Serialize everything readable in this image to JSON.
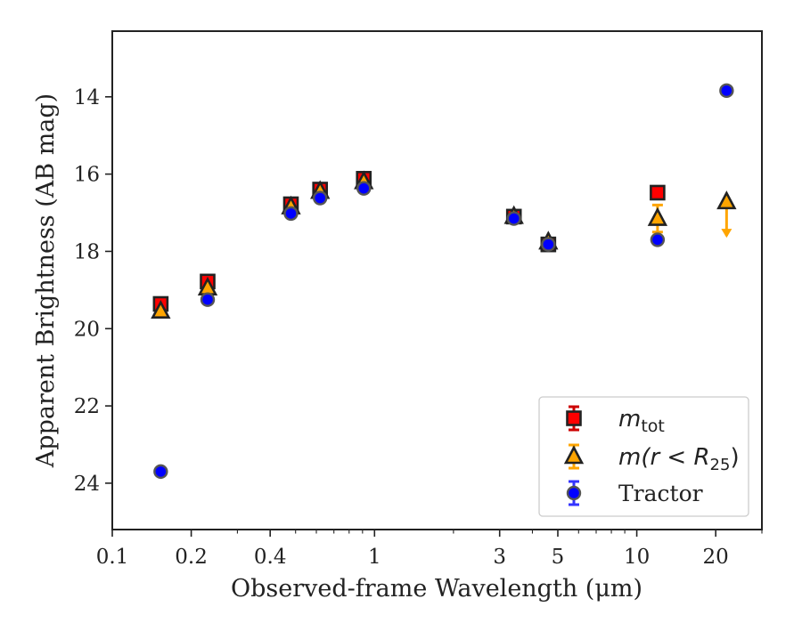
{
  "chart_data": {
    "type": "scatter",
    "xscale": "log",
    "xlim": [
      0.1,
      30
    ],
    "ylim": [
      25.2,
      12.3
    ],
    "y_inverted": true,
    "xlabel": "Observed-frame Wavelength (μm)",
    "ylabel": "Apparent Brightness (AB mag)",
    "x_ticks": [
      0.1,
      0.2,
      0.4,
      1,
      3,
      5,
      10,
      20
    ],
    "x_tick_labels": [
      "0.1",
      "0.2",
      "0.4",
      "1",
      "3",
      "5",
      "10",
      "20"
    ],
    "y_ticks": [
      14,
      16,
      18,
      20,
      22,
      24
    ],
    "y_tick_labels": [
      "14",
      "16",
      "18",
      "20",
      "22",
      "24"
    ],
    "grid": false,
    "legend_position": "lower-right",
    "series": [
      {
        "name": "m_tot",
        "legend_parts": {
          "base": "m",
          "sub": "tot"
        },
        "marker": "square",
        "color": "#ff0000",
        "edge": "#222222",
        "errcolor": "#cc0000",
        "points": [
          {
            "x": 0.153,
            "y": 19.36
          },
          {
            "x": 0.231,
            "y": 18.78
          },
          {
            "x": 0.48,
            "y": 16.78
          },
          {
            "x": 0.62,
            "y": 16.4
          },
          {
            "x": 0.91,
            "y": 16.12
          },
          {
            "x": 3.4,
            "y": 17.1
          },
          {
            "x": 4.6,
            "y": 17.82
          },
          {
            "x": 12.0,
            "y": 16.48
          }
        ]
      },
      {
        "name": "m(r < R_25)",
        "legend_parts": {
          "pre": "m(r < R",
          "sub": "25",
          "post": ")"
        },
        "marker": "triangle",
        "color": "#ffa500",
        "edge": "#222222",
        "errcolor": "#ffa500",
        "points": [
          {
            "x": 0.153,
            "y": 19.55
          },
          {
            "x": 0.231,
            "y": 18.95
          },
          {
            "x": 0.48,
            "y": 16.85
          },
          {
            "x": 0.62,
            "y": 16.45
          },
          {
            "x": 0.91,
            "y": 16.2
          },
          {
            "x": 3.4,
            "y": 17.1
          },
          {
            "x": 4.6,
            "y": 17.76
          },
          {
            "x": 12.0,
            "y": 17.15,
            "yerr": 0.35
          },
          {
            "x": 22.0,
            "y": 16.72,
            "upper_limit": true,
            "arrow_to": 17.6
          }
        ]
      },
      {
        "name": "Tractor",
        "marker": "circle",
        "color": "#0000ff",
        "edge": "#555555",
        "errcolor": "#3333ff",
        "points": [
          {
            "x": 0.153,
            "y": 23.7
          },
          {
            "x": 0.231,
            "y": 19.25
          },
          {
            "x": 0.48,
            "y": 17.02
          },
          {
            "x": 0.62,
            "y": 16.62
          },
          {
            "x": 0.91,
            "y": 16.37
          },
          {
            "x": 3.4,
            "y": 17.15
          },
          {
            "x": 4.6,
            "y": 17.82
          },
          {
            "x": 12.0,
            "y": 17.7
          },
          {
            "x": 22.0,
            "y": 13.84
          }
        ]
      }
    ]
  }
}
